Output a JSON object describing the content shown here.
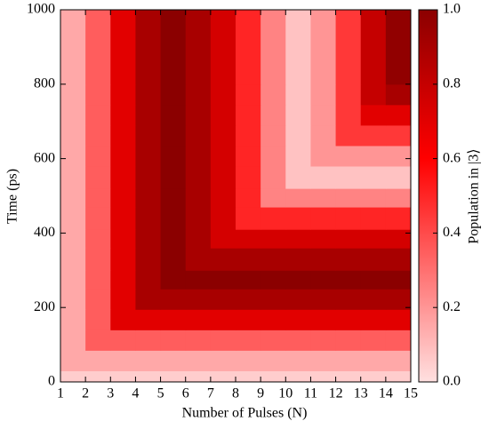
{
  "chart_data": {
    "type": "heatmap",
    "x_label": "Number of Pulses (N)",
    "y_label": "Time (ps)",
    "colorbar_label": "Population in |3⟩",
    "x_edges": [
      1,
      2,
      3,
      4,
      5,
      6,
      7,
      8,
      9,
      10,
      11,
      12,
      13,
      14,
      15
    ],
    "y_edges": [
      0,
      30,
      85,
      140,
      195,
      250,
      300,
      360,
      410,
      470,
      520,
      580,
      635,
      690,
      745,
      800,
      1000
    ],
    "values": [
      [
        0.05,
        0.05,
        0.05,
        0.05,
        0.05,
        0.05,
        0.05,
        0.05,
        0.05,
        0.05,
        0.05,
        0.05,
        0.05,
        0.05
      ],
      [
        0.15,
        0.15,
        0.15,
        0.15,
        0.15,
        0.15,
        0.15,
        0.15,
        0.15,
        0.15,
        0.15,
        0.15,
        0.15,
        0.15
      ],
      [
        0.15,
        0.35,
        0.35,
        0.35,
        0.35,
        0.35,
        0.35,
        0.35,
        0.35,
        0.35,
        0.35,
        0.35,
        0.35,
        0.35
      ],
      [
        0.15,
        0.35,
        0.7,
        0.7,
        0.7,
        0.7,
        0.7,
        0.7,
        0.7,
        0.7,
        0.7,
        0.7,
        0.7,
        0.7
      ],
      [
        0.15,
        0.35,
        0.7,
        0.9,
        0.9,
        0.9,
        0.9,
        0.9,
        0.9,
        0.9,
        0.9,
        0.9,
        0.9,
        0.9
      ],
      [
        0.15,
        0.35,
        0.7,
        0.9,
        1.0,
        1.0,
        1.0,
        1.0,
        1.0,
        1.0,
        1.0,
        1.0,
        1.0,
        1.0
      ],
      [
        0.15,
        0.35,
        0.7,
        0.9,
        1.0,
        0.9,
        0.9,
        0.9,
        0.9,
        0.9,
        0.9,
        0.9,
        0.9,
        0.9
      ],
      [
        0.15,
        0.35,
        0.7,
        0.9,
        1.0,
        0.9,
        0.75,
        0.75,
        0.75,
        0.75,
        0.75,
        0.75,
        0.75,
        0.75
      ],
      [
        0.15,
        0.35,
        0.7,
        0.9,
        1.0,
        0.9,
        0.75,
        0.5,
        0.5,
        0.5,
        0.5,
        0.5,
        0.5,
        0.5
      ],
      [
        0.15,
        0.35,
        0.7,
        0.9,
        1.0,
        0.9,
        0.75,
        0.5,
        0.25,
        0.25,
        0.25,
        0.25,
        0.25,
        0.25
      ],
      [
        0.15,
        0.35,
        0.7,
        0.9,
        1.0,
        0.9,
        0.75,
        0.5,
        0.25,
        0.08,
        0.08,
        0.08,
        0.08,
        0.08
      ],
      [
        0.15,
        0.35,
        0.7,
        0.9,
        1.0,
        0.9,
        0.75,
        0.5,
        0.25,
        0.08,
        0.2,
        0.2,
        0.2,
        0.2
      ],
      [
        0.15,
        0.35,
        0.7,
        0.9,
        1.0,
        0.9,
        0.75,
        0.5,
        0.25,
        0.08,
        0.2,
        0.45,
        0.45,
        0.45
      ],
      [
        0.15,
        0.35,
        0.7,
        0.9,
        1.0,
        0.9,
        0.75,
        0.5,
        0.25,
        0.08,
        0.2,
        0.45,
        0.7,
        0.7
      ],
      [
        0.15,
        0.35,
        0.7,
        0.9,
        1.0,
        0.9,
        0.75,
        0.5,
        0.25,
        0.08,
        0.2,
        0.45,
        0.8,
        0.9
      ],
      [
        0.15,
        0.35,
        0.7,
        0.9,
        1.0,
        0.9,
        0.75,
        0.5,
        0.25,
        0.08,
        0.2,
        0.45,
        0.8,
        0.98
      ]
    ],
    "colormap": [
      {
        "value": 0,
        "color": "#ffe0e0"
      },
      {
        "value": 0.6,
        "color": "#ff0000"
      },
      {
        "value": 1,
        "color": "#8b0000"
      }
    ],
    "xlim": [
      1,
      15
    ],
    "xticks": [
      1,
      2,
      3,
      4,
      5,
      6,
      7,
      8,
      9,
      10,
      11,
      12,
      13,
      14,
      15
    ],
    "ylim": [
      0,
      1000
    ],
    "yticks": [
      0,
      200,
      400,
      600,
      800,
      1000
    ],
    "clim": [
      0,
      1
    ],
    "cticks": [
      {
        "value": 0,
        "label": "0.0"
      },
      0.2,
      0.4,
      0.6,
      0.8,
      {
        "value": 1,
        "label": "1.0"
      }
    ]
  }
}
